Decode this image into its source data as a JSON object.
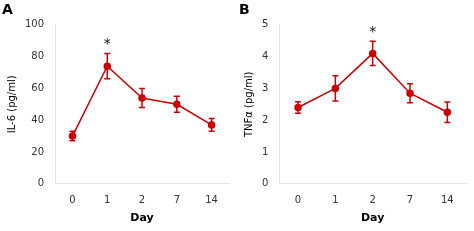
{
  "chart_data": [
    {
      "type": "line",
      "title": "A",
      "xlabel": "Day",
      "ylabel": "IL-6 (pg/ml)",
      "categories": [
        "0",
        "1",
        "2",
        "7",
        "14"
      ],
      "values": [
        30,
        74,
        54,
        50,
        37
      ],
      "errors": [
        3,
        8,
        6,
        5,
        4
      ],
      "color": "#cc0000",
      "marker": "circle",
      "ylim": [
        0,
        100
      ],
      "yticks": [
        0,
        20,
        40,
        60,
        80,
        100
      ],
      "grid": false,
      "annotations": [
        {
          "text": "*",
          "category": "1"
        }
      ]
    },
    {
      "type": "line",
      "title": "B",
      "xlabel": "Day",
      "ylabel": "TNFα (pg/ml)",
      "categories": [
        "0",
        "1",
        "2",
        "7",
        "14"
      ],
      "values": [
        2.4,
        3.0,
        4.1,
        2.85,
        2.25
      ],
      "errors": [
        0.18,
        0.4,
        0.38,
        0.3,
        0.32
      ],
      "color": "#cc0000",
      "marker": "circle",
      "ylim": [
        0,
        5
      ],
      "yticks": [
        0,
        1,
        2,
        3,
        4,
        5
      ],
      "grid": false,
      "annotations": [
        {
          "text": "*",
          "category": "2"
        }
      ]
    }
  ]
}
